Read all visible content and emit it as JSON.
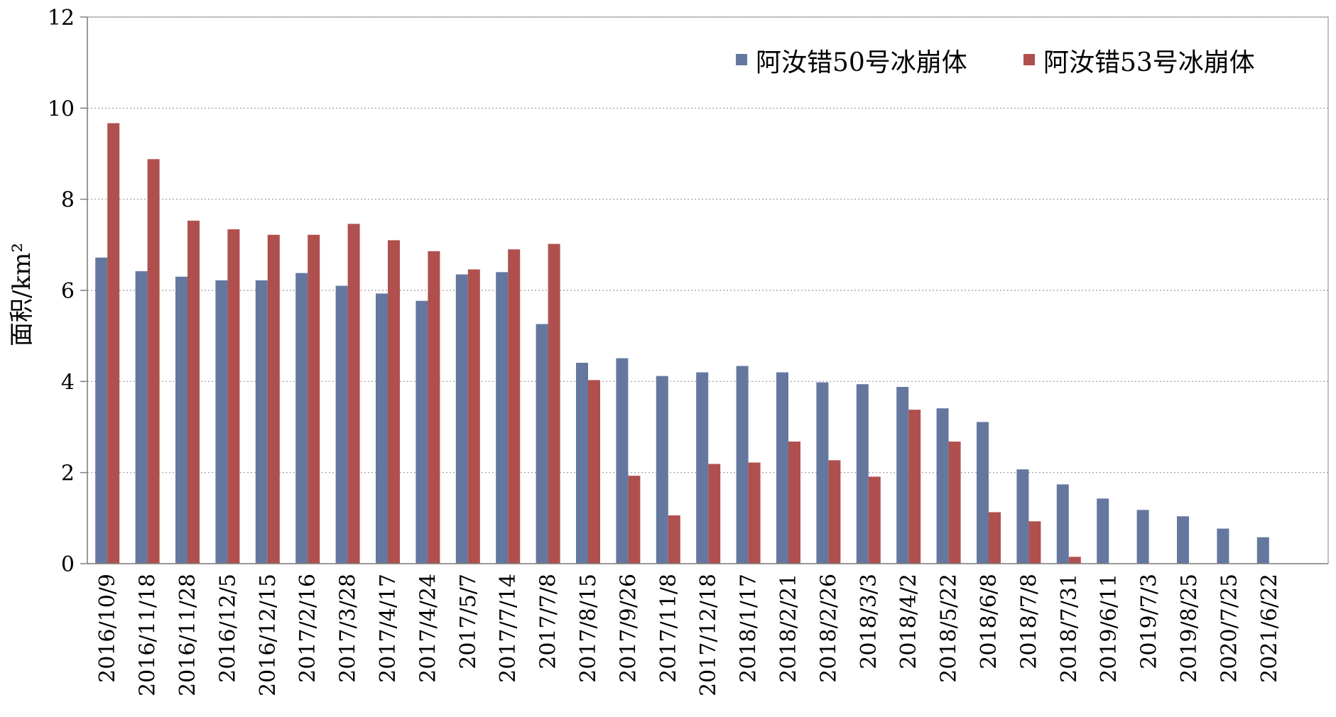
{
  "chart_data": {
    "type": "bar",
    "title": "",
    "xlabel": "",
    "ylabel": "面积/km²",
    "ylim": [
      0,
      12
    ],
    "yticks": [
      0,
      2,
      4,
      6,
      8,
      10,
      12
    ],
    "grid": true,
    "legend_position": "top-right",
    "categories": [
      "2016/10/9",
      "2016/11/18",
      "2016/11/28",
      "2016/12/5",
      "2016/12/15",
      "2017/2/16",
      "2017/3/28",
      "2017/4/17",
      "2017/4/24",
      "2017/5/7",
      "2017/7/14",
      "2017/7/8",
      "2017/8/15",
      "2017/9/26",
      "2017/11/8",
      "2017/12/18",
      "2018/1/17",
      "2018/2/21",
      "2018/2/26",
      "2018/3/3",
      "2018/4/2",
      "2018/5/22",
      "2018/6/8",
      "2018/7/8",
      "2018/7/31",
      "2019/6/11",
      "2019/7/3",
      "2019/8/25",
      "2020/7/25",
      "2021/6/22"
    ],
    "series": [
      {
        "name": "阿汝错50号冰崩体",
        "color": "#64789F",
        "values": [
          6.72,
          6.42,
          6.3,
          6.22,
          6.22,
          6.38,
          6.1,
          5.93,
          5.77,
          6.35,
          6.4,
          5.26,
          4.41,
          4.51,
          4.12,
          4.2,
          4.34,
          4.2,
          3.98,
          3.94,
          3.88,
          3.41,
          3.11,
          2.07,
          1.74,
          1.43,
          1.18,
          1.04,
          0.77,
          0.58
        ]
      },
      {
        "name": "阿汝错53号冰崩体",
        "color": "#B0504E",
        "values": [
          9.67,
          8.88,
          7.53,
          7.34,
          7.22,
          7.22,
          7.46,
          7.1,
          6.86,
          6.46,
          6.9,
          7.02,
          4.03,
          1.93,
          1.06,
          2.19,
          2.22,
          2.68,
          2.27,
          1.91,
          3.38,
          2.68,
          1.13,
          0.93,
          0.15,
          null,
          null,
          null,
          null,
          null
        ]
      }
    ]
  }
}
